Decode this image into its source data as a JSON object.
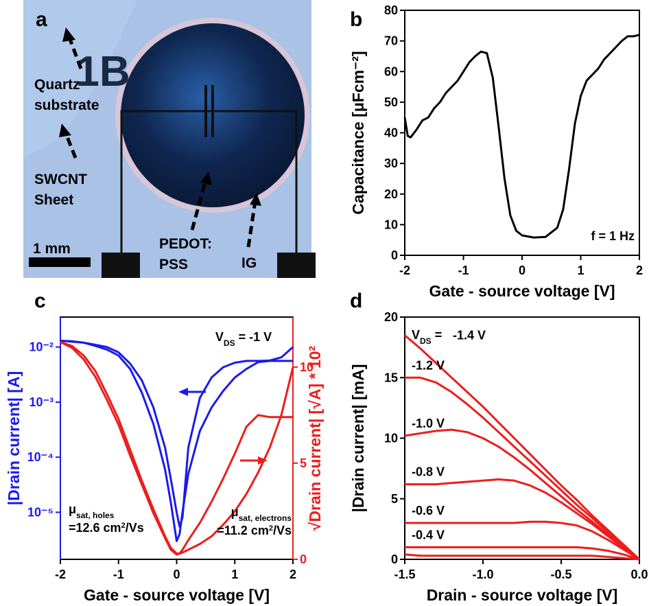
{
  "photo_panel": {
    "label": "a",
    "marking": "1B",
    "scale_bar": "1 mm",
    "annotations": [
      [
        "Quartz",
        "substrate"
      ],
      [
        "SWCNT",
        "Sheet"
      ],
      [
        "PEDOT:",
        "PSS"
      ],
      [
        "IG"
      ]
    ]
  },
  "chart_data": [
    {
      "type": "line",
      "label": "b",
      "xlabel": "Gate - source voltage [V]",
      "ylabel": "Capacitance [μFcm⁻²]",
      "xlim": [
        -2,
        2
      ],
      "ylim": [
        0,
        80
      ],
      "xticks": [
        -2,
        -1,
        0,
        1,
        2
      ],
      "yticks": [
        0,
        10,
        20,
        30,
        40,
        50,
        60,
        70,
        80
      ],
      "x": [
        -2,
        -1.95,
        -1.9,
        -1.8,
        -1.7,
        -1.6,
        -1.5,
        -1.4,
        -1.3,
        -1.2,
        -1.1,
        -1,
        -0.9,
        -0.8,
        -0.7,
        -0.6,
        -0.5,
        -0.4,
        -0.3,
        -0.2,
        -0.1,
        0,
        0.2,
        0.4,
        0.6,
        0.7,
        0.8,
        0.9,
        1.0,
        1.1,
        1.2,
        1.3,
        1.4,
        1.5,
        1.6,
        1.7,
        1.8,
        1.9,
        2.0
      ],
      "series": [
        {
          "color": "#000000",
          "values": [
            45,
            39,
            38.5,
            41,
            44,
            45,
            48,
            50,
            53,
            55,
            57,
            60,
            63,
            65,
            66.5,
            66,
            58,
            42,
            25,
            13,
            8,
            6.5,
            5.8,
            6,
            9,
            15,
            28,
            43,
            52,
            57,
            59,
            61,
            64,
            66,
            68,
            70,
            71.5,
            71.5,
            72
          ]
        }
      ],
      "annotations": [
        {
          "parts": [
            {
              "text": "f = 1 Hz"
            }
          ]
        }
      ]
    },
    {
      "type": "line",
      "label": "c",
      "xlabel": "Gate - source voltage [V]",
      "ylabel": "|Drain current| [A]",
      "y2label": "√Drain current| [√A] * 10²",
      "ycolor": "#1a1aee",
      "y2color": "#ee1c1c",
      "log_y": true,
      "xlim": [
        -2,
        2
      ],
      "ylim": [
        1.4e-06,
        0.035
      ],
      "y2lim": [
        0,
        12.6
      ],
      "xticks": [
        -2,
        -1,
        0,
        1,
        2
      ],
      "yticks": [
        {
          "value": 1e-05,
          "label": "10⁻⁵"
        },
        {
          "value": 0.0001,
          "label": "10⁻⁴"
        },
        {
          "value": 0.001,
          "label": "10⁻³"
        },
        {
          "value": 0.01,
          "label": "10⁻²"
        }
      ],
      "y2ticks": [
        0,
        5,
        10
      ],
      "x": [
        -2,
        -1.8,
        -1.6,
        -1.4,
        -1.2,
        -1,
        -0.8,
        -0.6,
        -0.4,
        -0.2,
        -0.1,
        0,
        0.05,
        0.1,
        0.2,
        0.4,
        0.6,
        0.8,
        1,
        1.2,
        1.4,
        1.6,
        1.8,
        2
      ],
      "series": [
        {
          "color": "#1a1aee",
          "values": [
            0.013,
            0.0125,
            0.012,
            0.0105,
            0.009,
            0.007,
            0.004,
            0.0015,
            0.0004,
            6e-05,
            1.5e-05,
            3e-06,
            4e-06,
            1e-05,
            5e-05,
            0.0003,
            0.0008,
            0.0016,
            0.0028,
            0.004,
            0.0053,
            0.0056,
            0.0056,
            0.0056
          ]
        },
        {
          "color": "#1a1aee",
          "values": [
            0.013,
            0.0127,
            0.012,
            0.011,
            0.01,
            0.008,
            0.005,
            0.0025,
            0.0008,
            0.00015,
            4e-05,
            1e-05,
            5.5e-06,
            8e-06,
            0.00015,
            0.0012,
            0.0028,
            0.0043,
            0.0052,
            0.0056,
            0.0056,
            0.0057,
            0.0065,
            0.01
          ]
        },
        {
          "color": "#ee1c1c",
          "axis": "y2",
          "values": [
            11.3,
            11,
            10.4,
            9.5,
            8.3,
            7,
            5.4,
            3.9,
            2.4,
            1.1,
            0.5,
            0.25,
            0.3,
            0.5,
            1,
            1.9,
            3,
            4.2,
            5.5,
            6.9,
            7.5,
            7.4,
            7.4,
            7.4
          ]
        },
        {
          "color": "#ee1c1c",
          "axis": "y2",
          "values": [
            11.3,
            11.1,
            10.6,
            9.8,
            8.6,
            7.3,
            5.7,
            4.1,
            2.6,
            1.2,
            0.6,
            0.3,
            0.3,
            0.35,
            0.5,
            0.8,
            1.2,
            1.8,
            2.5,
            3.4,
            4.5,
            5.8,
            7.5,
            10
          ]
        }
      ],
      "annotations": [
        {
          "parts": [
            {
              "text": "V"
            },
            {
              "text": "DS",
              "style": "sub"
            },
            {
              "text": " = -1 V"
            }
          ]
        },
        {
          "parts": [
            {
              "text": "μ"
            },
            {
              "text": "sat, holes",
              "style": "sub"
            }
          ]
        },
        {
          "parts": [
            {
              "text": "=12.6 cm"
            },
            {
              "text": "2",
              "style": "sup"
            },
            {
              "text": "/Vs"
            }
          ]
        },
        {
          "parts": [
            {
              "text": "μ"
            },
            {
              "text": "sat, electrons",
              "style": "sub"
            }
          ]
        },
        {
          "parts": [
            {
              "text": "=11.2 cm"
            },
            {
              "text": "2",
              "style": "sup"
            },
            {
              "text": "/Vs"
            }
          ]
        }
      ]
    },
    {
      "type": "line",
      "label": "d",
      "xlabel": "Drain - source voltage [V]",
      "ylabel": "|Drain current| [mA]",
      "xlim": [
        -1.5,
        0
      ],
      "ylim": [
        0,
        20
      ],
      "xticks": [
        -1.5,
        {
          "value": -1,
          "label": "-1.0"
        },
        -0.5,
        {
          "value": 0,
          "label": "0.0"
        }
      ],
      "yticks": [
        0,
        5,
        10,
        15,
        20
      ],
      "x": [
        -1.5,
        -1.4,
        -1.3,
        -1.2,
        -1.1,
        -1,
        -0.9,
        -0.8,
        -0.7,
        -0.6,
        -0.5,
        -0.4,
        -0.3,
        -0.2,
        -0.1,
        0
      ],
      "series": [
        {
          "name": "-1.4 V",
          "color": "#ee1c1c",
          "values": [
            18.5,
            17.4,
            16.2,
            15,
            13.8,
            12.6,
            11.3,
            10,
            8.7,
            7.4,
            6.1,
            4.9,
            3.6,
            2.4,
            1.2,
            0
          ]
        },
        {
          "name": "-1.2 V",
          "color": "#ee1c1c",
          "values": [
            15,
            15,
            14.6,
            13.8,
            12.8,
            11.7,
            10.5,
            9.3,
            8.1,
            6.9,
            5.7,
            4.5,
            3.4,
            2.2,
            1.1,
            0
          ]
        },
        {
          "name": "-1.0 V",
          "color": "#ee1c1c",
          "values": [
            10.2,
            10.4,
            10.6,
            10.7,
            10.5,
            10,
            9.3,
            8.4,
            7.4,
            6.3,
            5.2,
            4.1,
            3.1,
            2,
            1,
            0
          ]
        },
        {
          "name": "-0.8 V",
          "color": "#ee1c1c",
          "values": [
            6.2,
            6.2,
            6.2,
            6.3,
            6.4,
            6.5,
            6.6,
            6.5,
            6.1,
            5.5,
            4.7,
            3.8,
            2.9,
            1.9,
            0.9,
            0
          ]
        },
        {
          "name": "-0.6 V",
          "color": "#ee1c1c",
          "values": [
            3,
            3,
            3,
            3,
            3,
            3,
            3,
            3,
            3.1,
            3.1,
            3,
            2.8,
            2.3,
            1.6,
            0.8,
            0
          ]
        },
        {
          "name": "-0.4 V",
          "color": "#ee1c1c",
          "values": [
            1,
            1,
            1,
            1,
            1,
            1,
            1,
            1,
            1,
            1,
            1,
            1,
            0.9,
            0.7,
            0.4,
            0
          ]
        },
        {
          "color": "#ee1c1c",
          "values": [
            0.4,
            0.3,
            0.3,
            0.3,
            0.3,
            0.3,
            0.3,
            0.3,
            0.3,
            0.3,
            0.3,
            0.3,
            0.3,
            0.2,
            0.1,
            0
          ]
        }
      ],
      "annotations": [
        {
          "parts": [
            {
              "text": "V"
            },
            {
              "text": "DS",
              "style": "sub"
            },
            {
              "text": " ="
            }
          ]
        }
      ]
    }
  ]
}
